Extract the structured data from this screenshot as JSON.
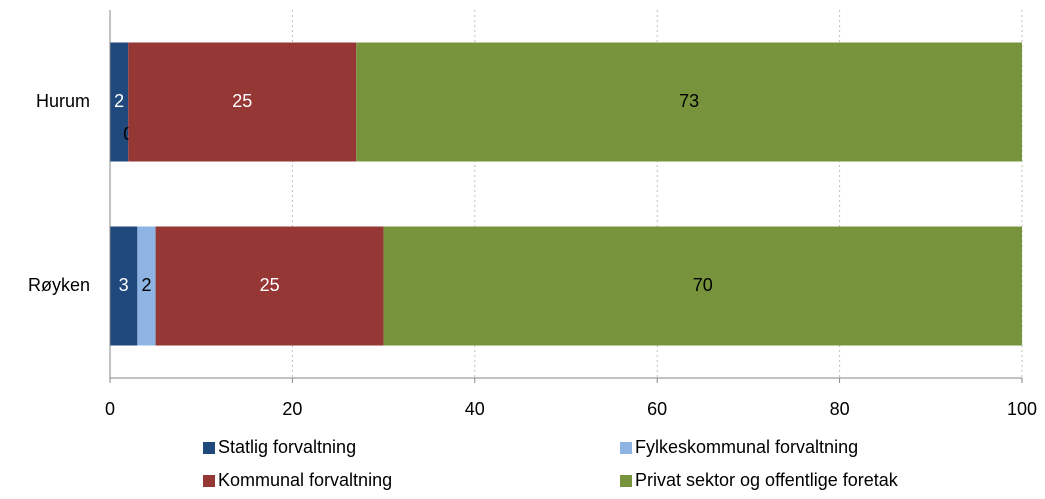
{
  "chart_data": {
    "type": "stacked-barh",
    "categories": [
      "Hurum",
      "Røyken"
    ],
    "series": [
      {
        "name": "Statlig forvaltning",
        "color": "#1f497d",
        "label_color": "#ffffff",
        "values": [
          2,
          3
        ]
      },
      {
        "name": "Fylkeskommunal forvaltning",
        "color": "#8db4e2",
        "label_color": "#000000",
        "values": [
          0,
          2
        ]
      },
      {
        "name": "Kommunal forvaltning",
        "color": "#953735",
        "label_color": "#ffffff",
        "values": [
          25,
          25
        ]
      },
      {
        "name": "Privat sektor og offentlige foretak",
        "color": "#77933c",
        "label_color": "#000000",
        "values": [
          73,
          70
        ]
      }
    ],
    "xlim": [
      0,
      100
    ],
    "xticks": [
      0,
      20,
      40,
      60,
      80,
      100
    ],
    "grid": true,
    "legend": "bottom"
  }
}
